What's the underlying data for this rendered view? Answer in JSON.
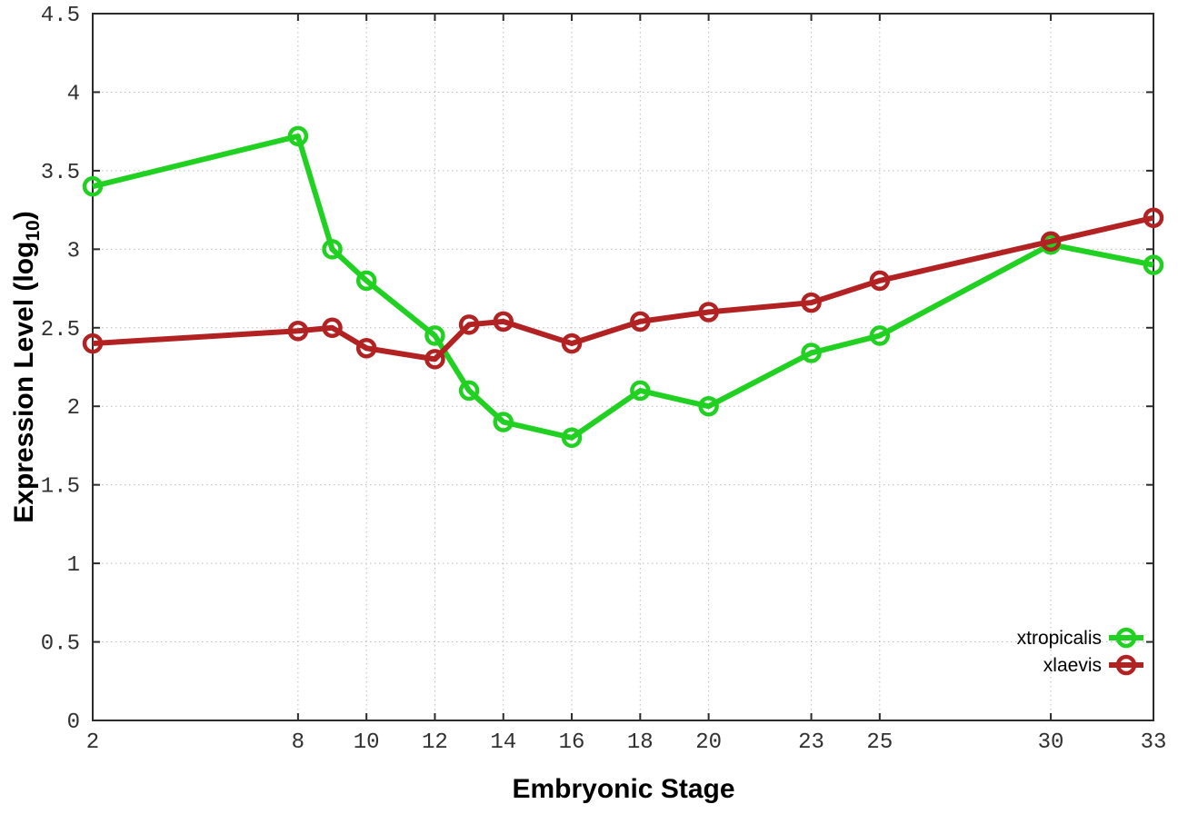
{
  "figure": {
    "background": "#ffffff",
    "ylabel_prefix": "Expression Level (log",
    "ylabel_sub": "10",
    "ylabel_suffix": ")"
  },
  "chart_data": {
    "type": "line",
    "title": "",
    "xlabel": "Embryonic Stage",
    "ylabel": "Expression Level (log10)",
    "x": [
      2,
      8,
      9,
      10,
      12,
      13,
      14,
      16,
      18,
      20,
      23,
      25,
      30,
      33
    ],
    "series": [
      {
        "name": "xtropicalis",
        "color": "#21d121",
        "marker": "open-circle",
        "values": [
          3.4,
          3.72,
          3.0,
          2.8,
          2.45,
          2.1,
          1.9,
          1.8,
          2.1,
          2.0,
          2.34,
          2.45,
          3.03,
          2.9
        ]
      },
      {
        "name": "xlaevis",
        "color": "#b22222",
        "marker": "open-circle",
        "values": [
          2.4,
          2.48,
          2.5,
          2.37,
          2.3,
          2.52,
          2.54,
          2.4,
          2.54,
          2.6,
          2.66,
          2.8,
          3.05,
          3.2
        ]
      }
    ],
    "xlim": [
      2,
      33
    ],
    "ylim": [
      0,
      4.5
    ],
    "x_tick_values": [
      2,
      8,
      10,
      12,
      14,
      16,
      18,
      20,
      23,
      25,
      30,
      33
    ],
    "x_tick_labels": [
      "2",
      "8",
      "10",
      "12",
      "14",
      "16",
      "18",
      "20",
      "23",
      "25",
      "30",
      "33"
    ],
    "y_tick_values": [
      0,
      0.5,
      1,
      1.5,
      2,
      2.5,
      3,
      3.5,
      4,
      4.5
    ],
    "y_tick_labels": [
      "0",
      "0.5",
      "1",
      "1.5",
      "2",
      "2.5",
      "3",
      "3.5",
      "4",
      "4.5"
    ],
    "grid": true,
    "grid_style": "dotted",
    "legend_position": "bottom-right-inside"
  },
  "colors": {
    "grid": "#bcbcbc",
    "axis": "#2b2b2b",
    "tick_text": "#303030",
    "xtropicalis": "#21d121",
    "xlaevis": "#b22222"
  }
}
